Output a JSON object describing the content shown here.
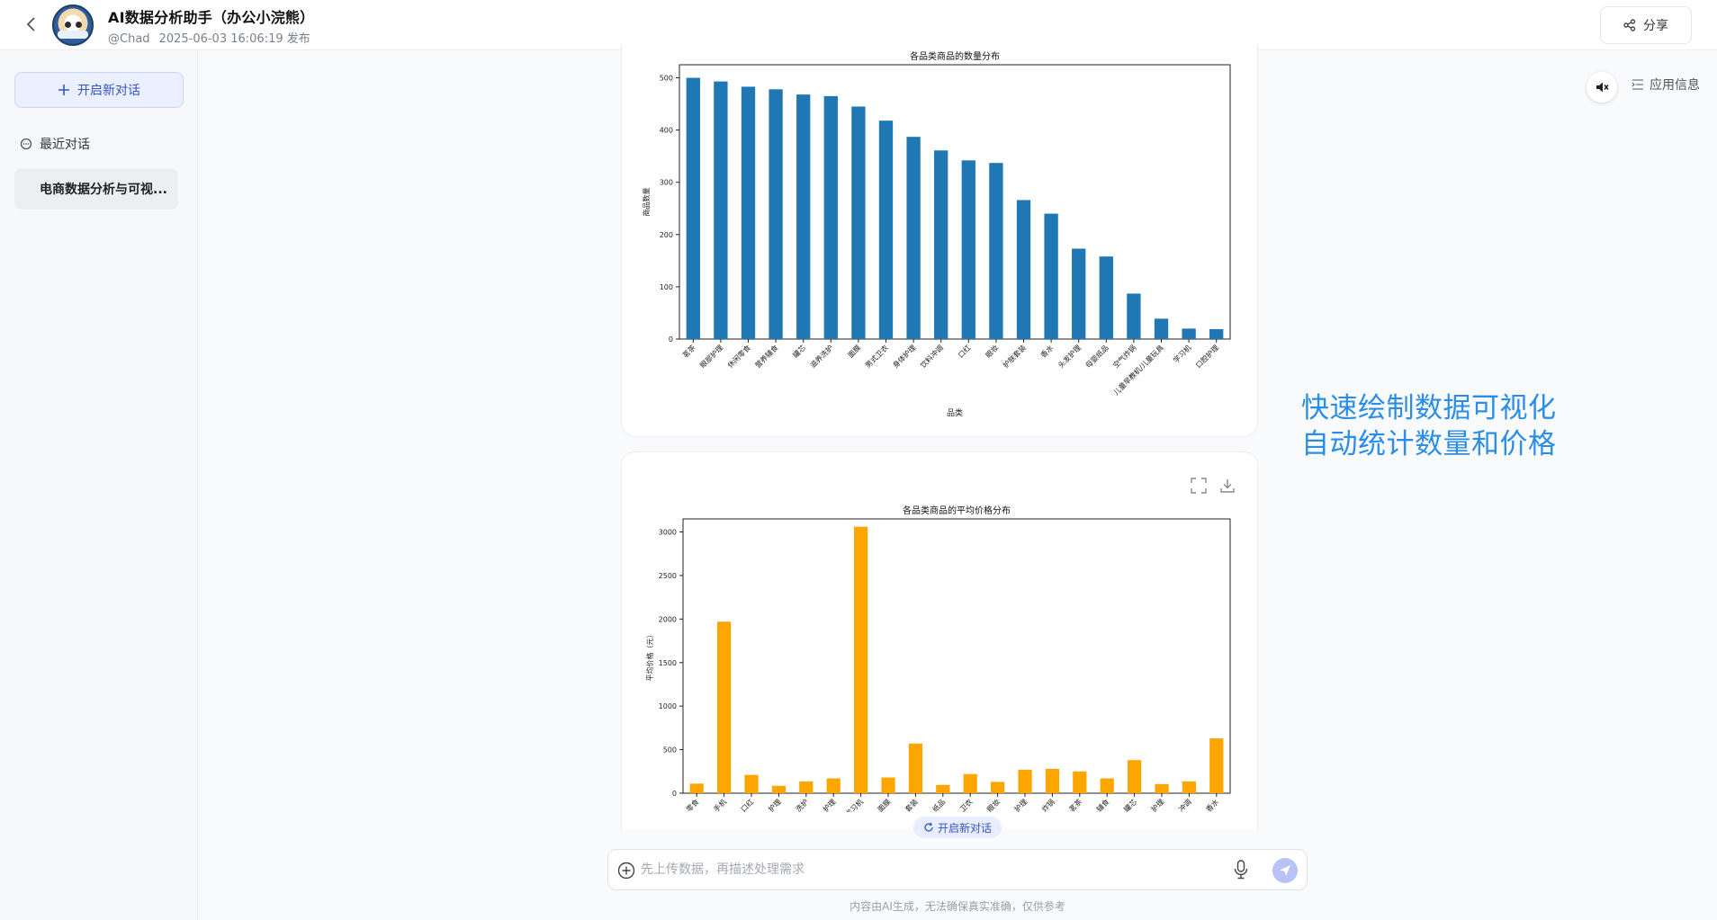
{
  "header": {
    "title": "AI数据分析助手（办公小浣熊）",
    "author": "@Chad",
    "published": "2025-06-03 16:06:19 发布",
    "share_label": "分享"
  },
  "sidebar": {
    "new_chat_label": "开启新对话",
    "recent_label": "最近对话",
    "conversations": [
      "电商数据分析与可视..."
    ]
  },
  "right_panel": {
    "app_info_label": "应用信息",
    "annotation_line1": "快速绘制数据可视化",
    "annotation_line2": "自动统计数量和价格"
  },
  "composer": {
    "new_chat_chip": "开启新对话",
    "placeholder": "先上传数据，再描述处理需求",
    "disclaimer": "内容由AI生成，无法确保真实准确，仅供参考"
  },
  "colors": {
    "bar_blue": "#1f77b4",
    "bar_orange": "#ffa500",
    "accent": "#3553c4",
    "annotation": "#2b8ee6"
  },
  "icons": {
    "back": "chevron-left-icon",
    "share": "share-icon",
    "mute": "volume-mute-icon",
    "app_info": "list-icon",
    "plus": "plus-circle-icon",
    "mic": "microphone-icon",
    "send": "send-icon",
    "expand": "expand-icon",
    "download": "download-icon",
    "refresh": "refresh-icon",
    "chat": "chat-icon"
  },
  "chart_data": [
    {
      "type": "bar",
      "title": "各品类商品的数量分布",
      "xlabel": "品类",
      "ylabel": "商品数量",
      "ylim": [
        0,
        525
      ],
      "yticks": [
        0,
        100,
        200,
        300,
        400,
        500
      ],
      "categories": [
        "茗茶",
        "眼部护理",
        "休闲零食",
        "营养辅食",
        "罐芯",
        "滋养洗护",
        "面膜",
        "男式卫衣",
        "身体护理",
        "饮料冲调",
        "口红",
        "眼妆",
        "护肤套装",
        "香水",
        "头发护理",
        "母婴纸品",
        "空气炸锅",
        "儿童早教机/儿童玩具",
        "学习机",
        "口腔护理"
      ],
      "values": [
        500,
        493,
        483,
        478,
        468,
        465,
        445,
        418,
        387,
        361,
        342,
        337,
        266,
        240,
        173,
        158,
        87,
        39,
        20,
        19
      ],
      "color": "#1f77b4",
      "grid": false
    },
    {
      "type": "bar",
      "title": "各品类商品的平均价格分布",
      "ylabel": "平均价格（元）",
      "ylim": [
        0,
        3150
      ],
      "yticks": [
        0,
        500,
        1000,
        1500,
        2000,
        2500,
        3000
      ],
      "categories": [
        "零食",
        "手机",
        "口红",
        "护理",
        "洗护",
        "护理",
        "学习机",
        "面膜",
        "套装",
        "纸品",
        "卫衣",
        "眼妆",
        "护理",
        "炸锅",
        "茗茶",
        "辅食",
        "罐芯",
        "护理",
        "冲调",
        "香水"
      ],
      "values": [
        110,
        1970,
        210,
        85,
        135,
        170,
        3060,
        180,
        570,
        95,
        220,
        130,
        270,
        280,
        250,
        170,
        380,
        105,
        135,
        630
      ],
      "color": "#ffa500",
      "grid": false
    }
  ]
}
